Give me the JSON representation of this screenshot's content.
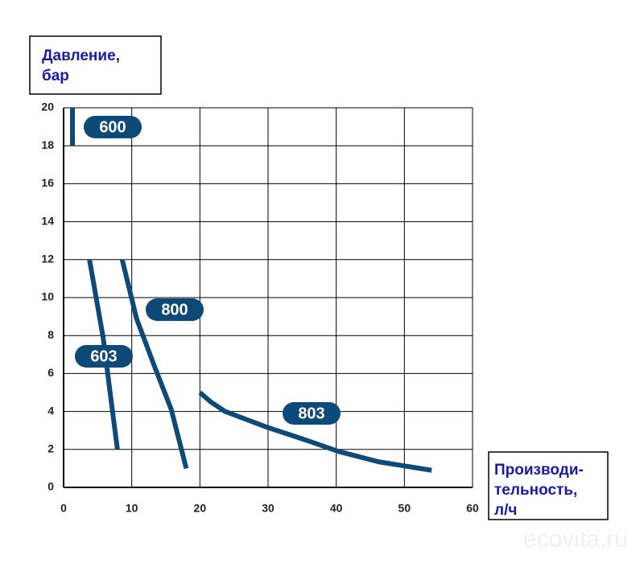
{
  "chart_data": {
    "type": "line",
    "y_label_lines": [
      "Давление,",
      "бар"
    ],
    "x_label_lines": [
      "Производи-",
      "тельность,",
      "л/ч"
    ],
    "watermark": "ecovita.ru",
    "xlim": [
      0,
      60
    ],
    "xticks": [
      0,
      10,
      20,
      30,
      40,
      50,
      60
    ],
    "ylim": [
      0,
      20
    ],
    "yticks": [
      0,
      2,
      4,
      6,
      8,
      10,
      12,
      14,
      16,
      18,
      20
    ],
    "grid": true,
    "series": [
      {
        "name": "600",
        "color": "#0e4a78",
        "x": [
          1.3,
          1.3
        ],
        "values": [
          18,
          20
        ]
      },
      {
        "name": "603",
        "color": "#0e4a78",
        "x": [
          3.8,
          5.8,
          7.0,
          7.9
        ],
        "values": [
          12,
          7.9,
          4.5,
          2.0
        ]
      },
      {
        "name": "800",
        "color": "#0e4a78",
        "x": [
          8.6,
          10.7,
          13.1,
          15.8,
          18.0
        ],
        "values": [
          12,
          8.9,
          6.6,
          4.1,
          1.0
        ]
      },
      {
        "name": "803",
        "color": "#0e4a78",
        "x": [
          20.0,
          21.6,
          23.7,
          29.6,
          35.5,
          40.3,
          46.2,
          54.0
        ],
        "values": [
          5.0,
          4.5,
          4.0,
          3.2,
          2.5,
          1.9,
          1.35,
          0.9
        ]
      }
    ]
  }
}
